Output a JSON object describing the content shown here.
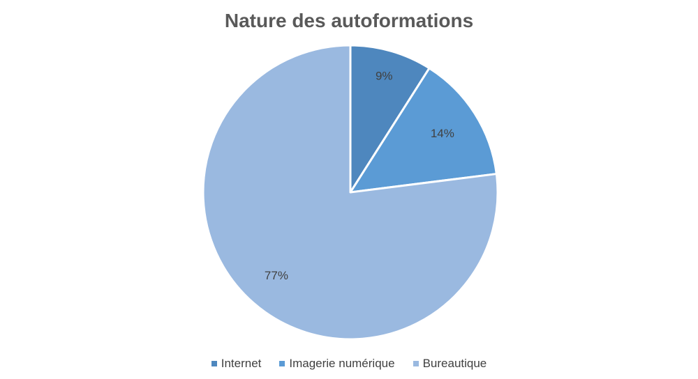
{
  "chart_data": {
    "type": "pie",
    "title": "Nature des autoformations",
    "categories": [
      "Internet",
      "Imagerie numérique",
      "Bureautique"
    ],
    "values": [
      9,
      14,
      77
    ],
    "labels": [
      "9%",
      "14%",
      "77%"
    ],
    "colors": [
      "#4e87be",
      "#5b9bd5",
      "#9ab9e0"
    ],
    "legend_position": "bottom",
    "start_angle": "12 o'clock",
    "direction": "clockwise"
  }
}
